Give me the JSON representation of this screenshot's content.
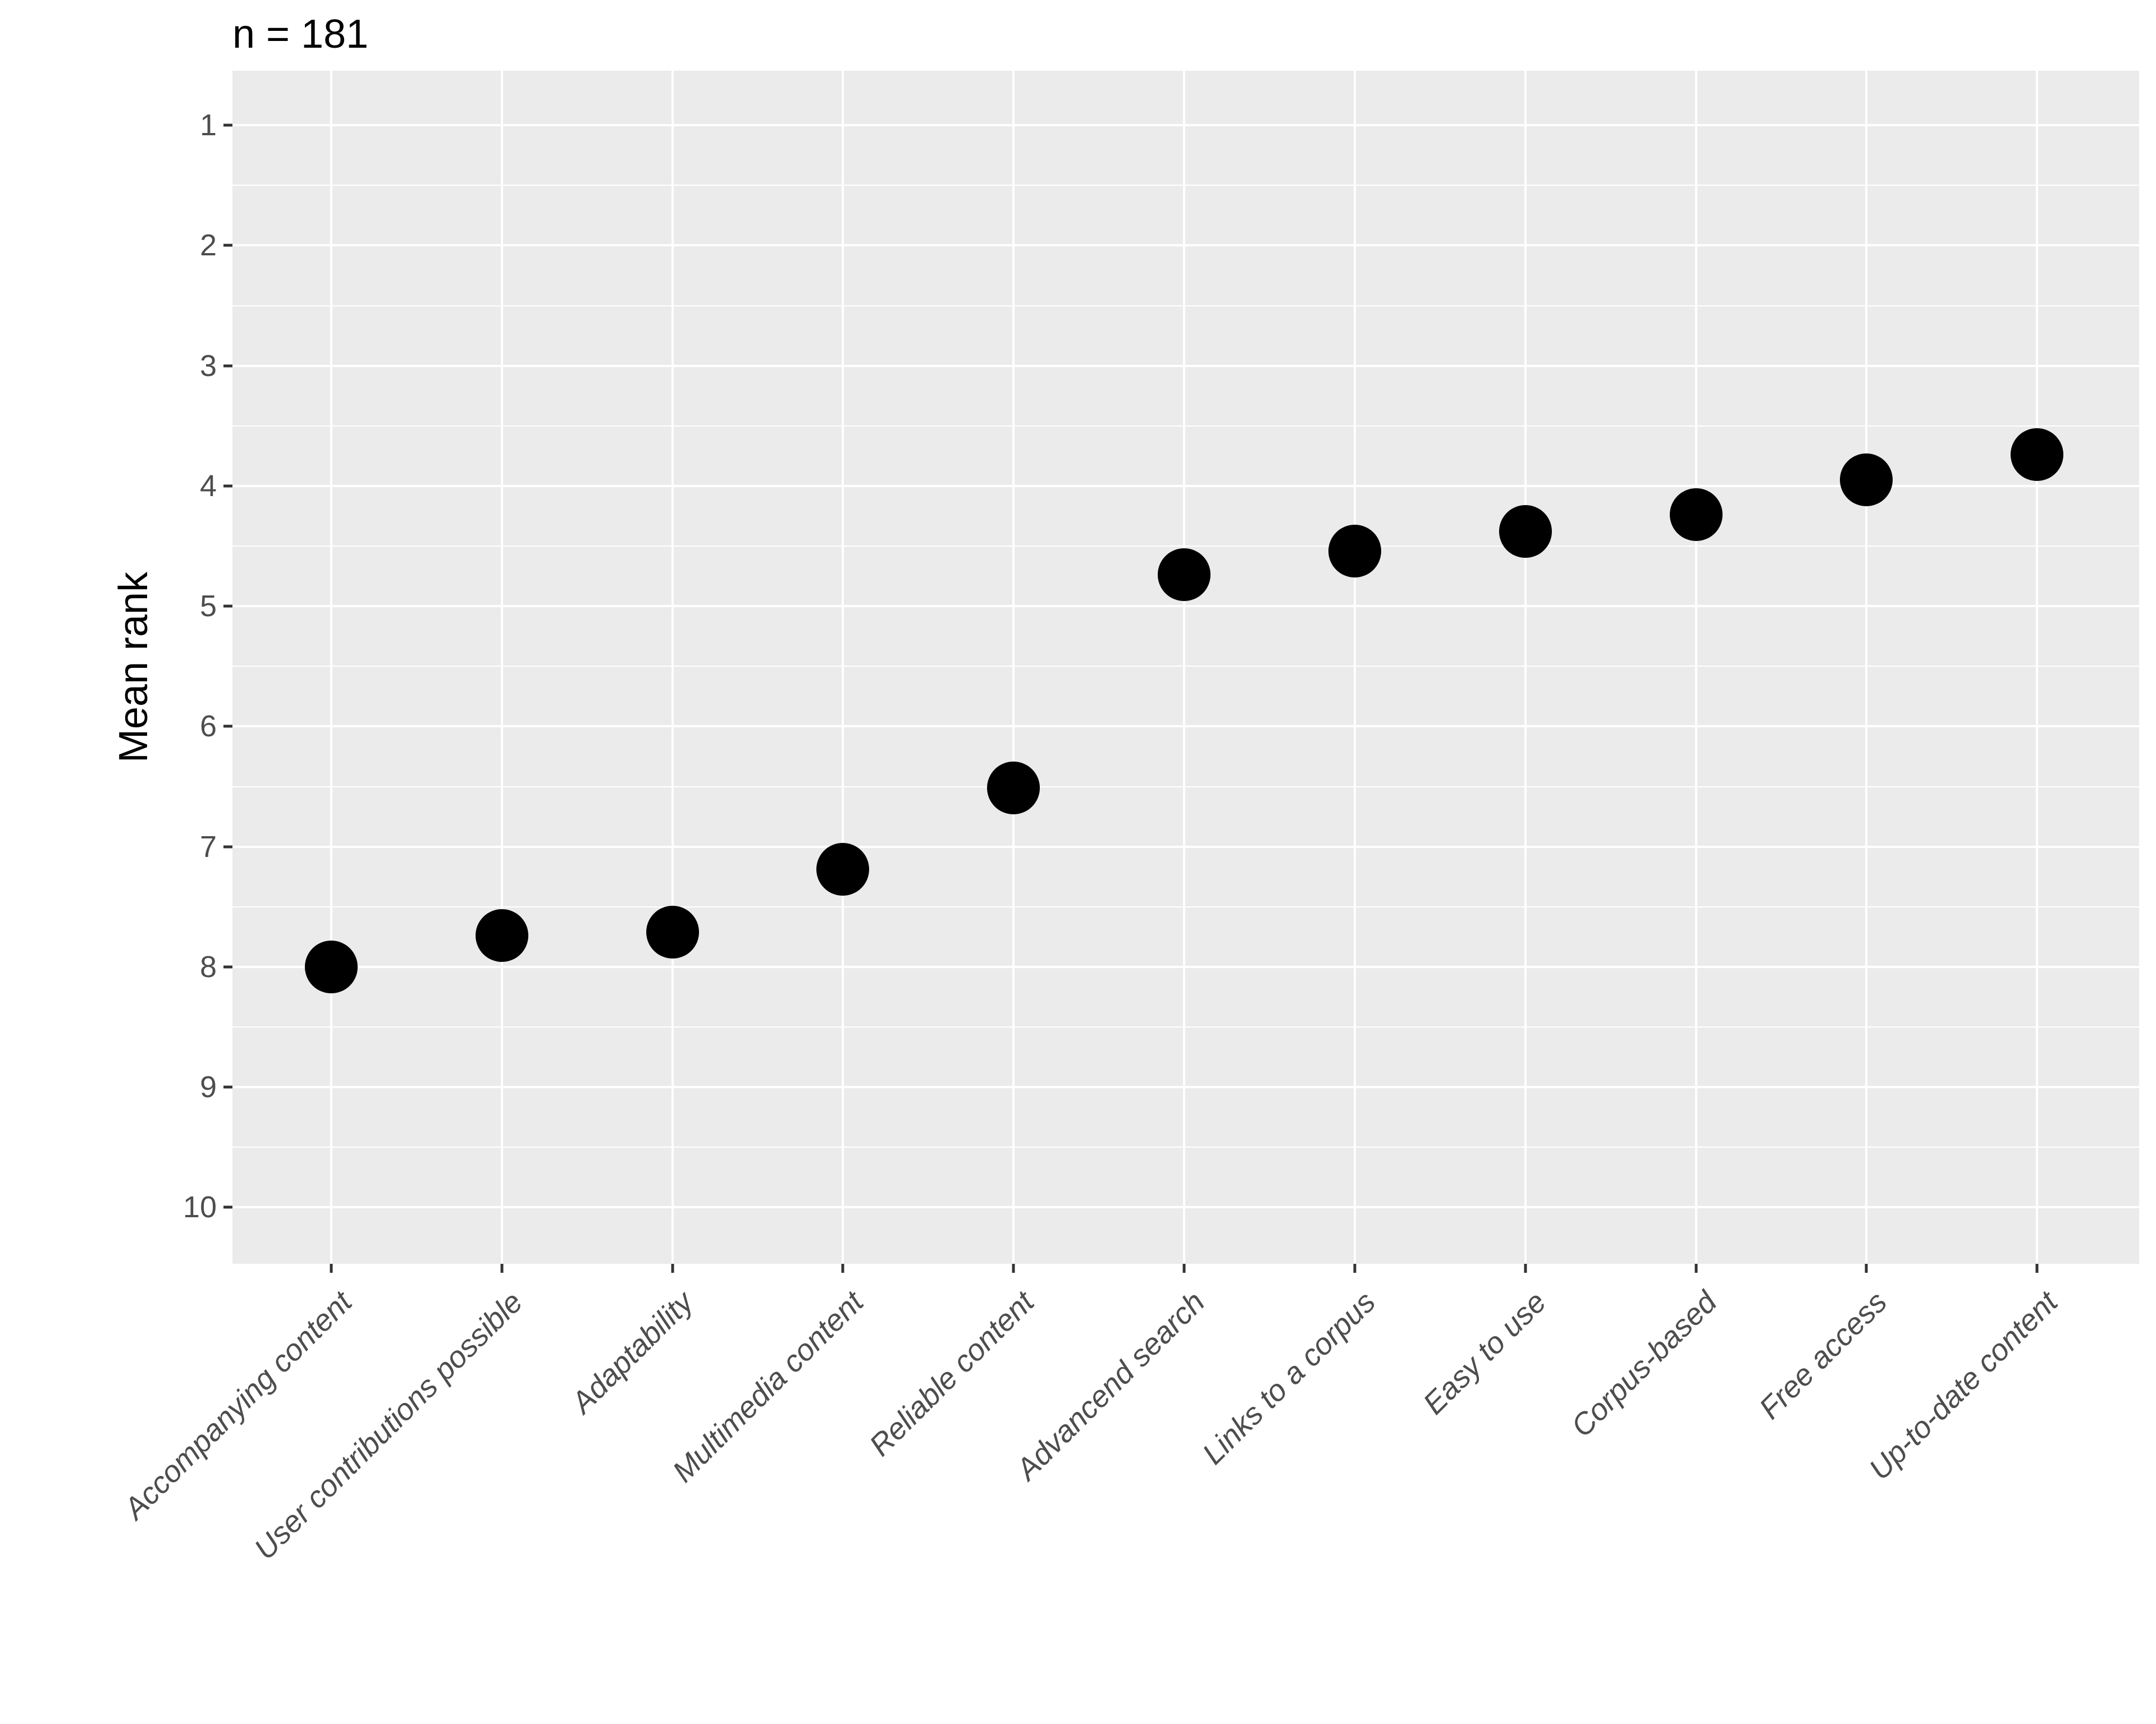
{
  "title": "n = 181",
  "colors": {
    "panel_background": "#EBEBEB",
    "gridline": "#FFFFFF",
    "point": "#000000",
    "tick_text": "#4D4D4D",
    "tick_mark": "#333333",
    "title_text": "#000000"
  },
  "chart_data": {
    "type": "scatter",
    "title": "n = 181",
    "xlabel": "",
    "ylabel": "Mean rank",
    "categories": [
      "Accompanying content",
      "User contributions possible",
      "Adaptability",
      "Multimedia content",
      "Reliable content",
      "Advancend search",
      "Links to a corpus",
      "Easy to use",
      "Corpus-based",
      "Free access",
      "Up-to-date content"
    ],
    "values": [
      8.0,
      7.74,
      7.71,
      7.19,
      6.51,
      4.74,
      4.54,
      4.38,
      4.24,
      3.95,
      3.74
    ],
    "y_ticks": [
      "1",
      "2",
      "3",
      "4",
      "5",
      "6",
      "7",
      "8",
      "9",
      "10"
    ],
    "y_minor_gridlines": [
      1.5,
      2.5,
      3.5,
      4.5,
      5.5,
      6.5,
      7.5,
      8.5,
      9.5
    ],
    "y_axis_reversed": true,
    "ylim": [
      0.55,
      10.45
    ],
    "grid": "major-and-minor",
    "legend_position": "none",
    "point_style": "filled black circle"
  }
}
